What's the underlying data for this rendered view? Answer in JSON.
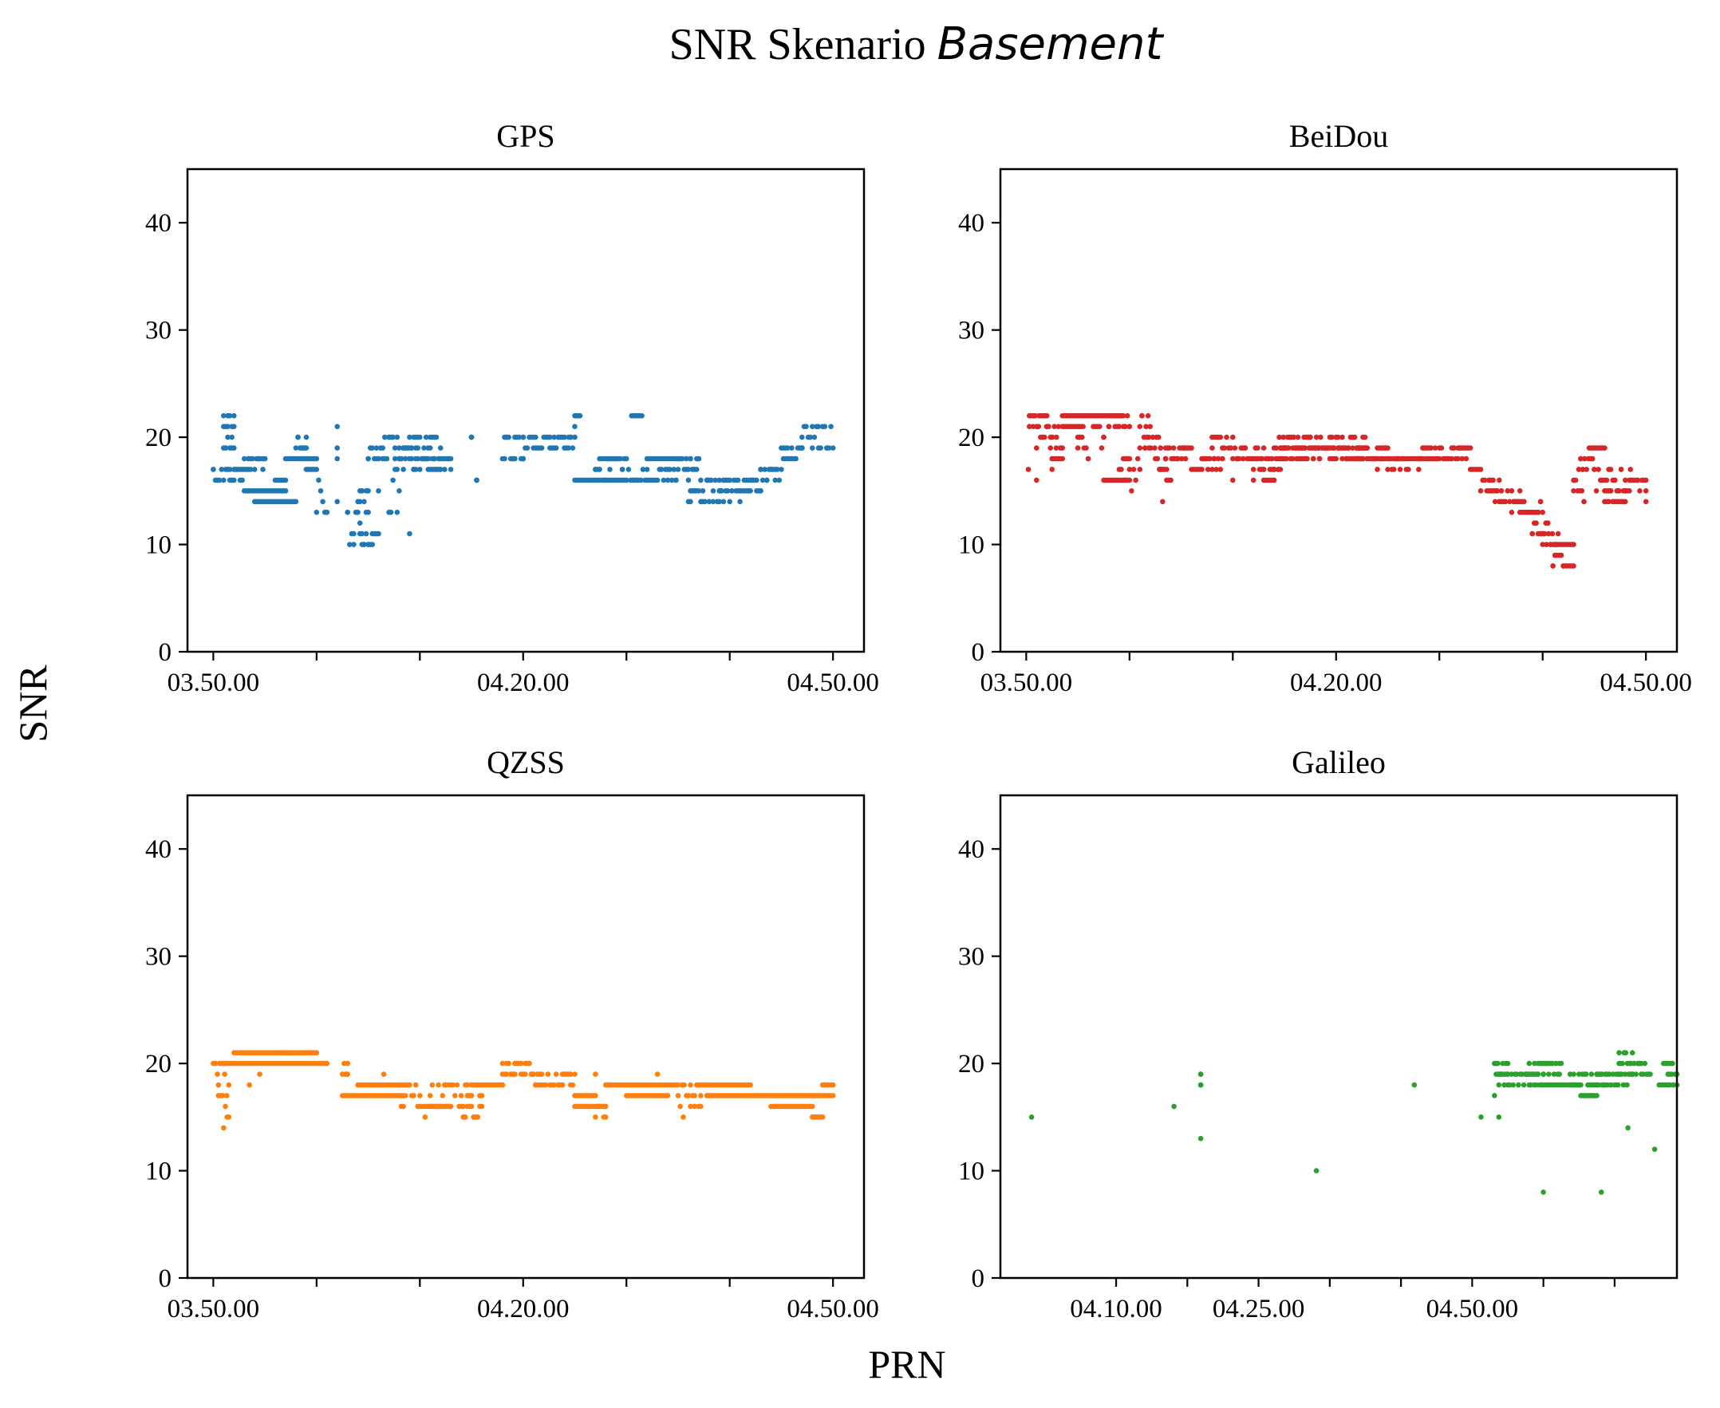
{
  "figure": {
    "title_prefix": "SNR Skenario",
    "title_italic": "Basement",
    "ylabel": "SNR",
    "xlabel": "PRN"
  },
  "chart_data": [
    {
      "type": "scatter",
      "title": "GPS",
      "color": "#1f77b4",
      "xlim": [
        -2.5,
        63
      ],
      "ylim": [
        0,
        45
      ],
      "yticks": [
        0,
        10,
        20,
        30,
        40
      ],
      "xticks": [
        0,
        10,
        20,
        30,
        40,
        50,
        60
      ],
      "xticklabels": [
        "03.50.00",
        "",
        "",
        "04.20.00",
        "",
        "",
        "04.50.00"
      ],
      "segments": [
        [
          0,
          3,
          16,
          17
        ],
        [
          1,
          2,
          21,
          22
        ],
        [
          1,
          2,
          19,
          20
        ],
        [
          3,
          5,
          17,
          18
        ],
        [
          3,
          7,
          15,
          15
        ],
        [
          4,
          8,
          14,
          14
        ],
        [
          6,
          7,
          16,
          16
        ],
        [
          7,
          10,
          18,
          18
        ],
        [
          8,
          9,
          19,
          20
        ],
        [
          9,
          10,
          17,
          17
        ],
        [
          10,
          11,
          13,
          16
        ],
        [
          12,
          12,
          14,
          21
        ],
        [
          13,
          15,
          10,
          13
        ],
        [
          14,
          15,
          14,
          15
        ],
        [
          15,
          16,
          10,
          11
        ],
        [
          15,
          22,
          18,
          20
        ],
        [
          17,
          18,
          11,
          17
        ],
        [
          18,
          22,
          17,
          19
        ],
        [
          22,
          23,
          17,
          18
        ],
        [
          25,
          25,
          20,
          20
        ],
        [
          25.5,
          25.5,
          16,
          16
        ],
        [
          28,
          30,
          18,
          20
        ],
        [
          30,
          35,
          19,
          20
        ],
        [
          35,
          35.5,
          21,
          22
        ],
        [
          35,
          40,
          16,
          16
        ],
        [
          37,
          40,
          17,
          18
        ],
        [
          40,
          45,
          16,
          17
        ],
        [
          40.5,
          41.5,
          22,
          22
        ],
        [
          42,
          45,
          18,
          18
        ],
        [
          45,
          47,
          17,
          18
        ],
        [
          46,
          50,
          14,
          16
        ],
        [
          49,
          53,
          15,
          16
        ],
        [
          53,
          55,
          16,
          17
        ],
        [
          55,
          57,
          18,
          19
        ],
        [
          57,
          60,
          19,
          21
        ]
      ],
      "scatter_points": [
        [
          2,
          16
        ],
        [
          9,
          18
        ],
        [
          11,
          13
        ],
        [
          12,
          21
        ],
        [
          16,
          15
        ],
        [
          19,
          11
        ],
        [
          23,
          17
        ],
        [
          25,
          20
        ],
        [
          25.5,
          16
        ],
        [
          29,
          18
        ],
        [
          30,
          18
        ],
        [
          38,
          16
        ],
        [
          44,
          17
        ],
        [
          48,
          14
        ],
        [
          51,
          14
        ]
      ]
    },
    {
      "type": "scatter",
      "title": "BeiDou",
      "color": "#d62728",
      "xlim": [
        -2.5,
        63
      ],
      "ylim": [
        0,
        45
      ],
      "yticks": [
        0,
        10,
        20,
        30,
        40
      ],
      "xticks": [
        0,
        10,
        20,
        30,
        40,
        50,
        60
      ],
      "xticklabels": [
        "03.50.00",
        "",
        "",
        "04.20.00",
        "",
        "",
        "04.50.00"
      ],
      "segments": [
        [
          0.3,
          2,
          21,
          22
        ],
        [
          1,
          3.5,
          19,
          21
        ],
        [
          2.5,
          3.5,
          18,
          19
        ],
        [
          3.5,
          5.5,
          21,
          21
        ],
        [
          3.5,
          9,
          22,
          22
        ],
        [
          5,
          6,
          18,
          21
        ],
        [
          6.5,
          7.5,
          19,
          21
        ],
        [
          7.5,
          10,
          16,
          16
        ],
        [
          8,
          10,
          21,
          22
        ],
        [
          9,
          10,
          17,
          18
        ],
        [
          10,
          11,
          15,
          18
        ],
        [
          11,
          12,
          19,
          22
        ],
        [
          11.5,
          13,
          19,
          20
        ],
        [
          12.5,
          13.5,
          17,
          18
        ],
        [
          13,
          14,
          16,
          17
        ],
        [
          13.5,
          16,
          18,
          19
        ],
        [
          16,
          19,
          17,
          18
        ],
        [
          18,
          20,
          19,
          20
        ],
        [
          20,
          23,
          18,
          19
        ],
        [
          22,
          25,
          17,
          18
        ],
        [
          23,
          24,
          16,
          17
        ],
        [
          24,
          27,
          18,
          19
        ],
        [
          24.5,
          28.5,
          19,
          20
        ],
        [
          27,
          33,
          18,
          19
        ],
        [
          29,
          33,
          19,
          20
        ],
        [
          31,
          35,
          18,
          19
        ],
        [
          33.5,
          36,
          18,
          18
        ],
        [
          35,
          37,
          17,
          18
        ],
        [
          36,
          40,
          18,
          18
        ],
        [
          38,
          43,
          18,
          19
        ],
        [
          43,
          44,
          17,
          17
        ],
        [
          44,
          46,
          15,
          16
        ],
        [
          45,
          48,
          14,
          15
        ],
        [
          47,
          50,
          13,
          14
        ],
        [
          49,
          50.5,
          11,
          12
        ],
        [
          50,
          51.5,
          10,
          11
        ],
        [
          51,
          52,
          8,
          9
        ],
        [
          51,
          53,
          10,
          10
        ],
        [
          52,
          53,
          8,
          8
        ],
        [
          53,
          54,
          14,
          16
        ],
        [
          53.5,
          55,
          17,
          18
        ],
        [
          54.5,
          56,
          19,
          19
        ],
        [
          55,
          58,
          15,
          17
        ],
        [
          56,
          58,
          14,
          15
        ],
        [
          58,
          60,
          15,
          16
        ]
      ],
      "scatter_points": [
        [
          0.2,
          17
        ],
        [
          1,
          16
        ],
        [
          2.5,
          17
        ],
        [
          8,
          21
        ],
        [
          9.5,
          16
        ],
        [
          13.2,
          14
        ],
        [
          20,
          16
        ],
        [
          22,
          16
        ],
        [
          34,
          17
        ],
        [
          38,
          17
        ],
        [
          58.5,
          17
        ],
        [
          60,
          14
        ]
      ]
    },
    {
      "type": "scatter",
      "title": "QZSS",
      "color": "#ff7f0e",
      "xlim": [
        -2.5,
        63
      ],
      "ylim": [
        0,
        45
      ],
      "yticks": [
        0,
        10,
        20,
        30,
        40
      ],
      "xticks": [
        0,
        10,
        20,
        30,
        40,
        50,
        60
      ],
      "xticklabels": [
        "03.50.00",
        "",
        "",
        "04.20.00",
        "",
        "",
        "04.50.00"
      ],
      "segments": [
        [
          0,
          1,
          19,
          20
        ],
        [
          0.5,
          1.5,
          17,
          19
        ],
        [
          1,
          1.5,
          14,
          16
        ],
        [
          1,
          11,
          20,
          20
        ],
        [
          2,
          7,
          21,
          21
        ],
        [
          6.5,
          10,
          21,
          21
        ],
        [
          12.5,
          16,
          17,
          17
        ],
        [
          12.5,
          13,
          19,
          20
        ],
        [
          14,
          19,
          18,
          18
        ],
        [
          16,
          18,
          17,
          17
        ],
        [
          18,
          20,
          16,
          18
        ],
        [
          20,
          23,
          16,
          16
        ],
        [
          21,
          25,
          16,
          18
        ],
        [
          24,
          26,
          15,
          17
        ],
        [
          25,
          28,
          18,
          18
        ],
        [
          28,
          31,
          19,
          20
        ],
        [
          31,
          35,
          18,
          19
        ],
        [
          35,
          37,
          17,
          17
        ],
        [
          35,
          38,
          16,
          16
        ],
        [
          37,
          38,
          15,
          16
        ],
        [
          38,
          45,
          18,
          18
        ],
        [
          40,
          44,
          17,
          17
        ],
        [
          45,
          48,
          16,
          18
        ],
        [
          47,
          52,
          18,
          18
        ],
        [
          48,
          60,
          17,
          17
        ],
        [
          54,
          58,
          16,
          16
        ],
        [
          58,
          59,
          15,
          15
        ],
        [
          59,
          60,
          18,
          18
        ]
      ],
      "scatter_points": [
        [
          3.5,
          18
        ],
        [
          4.5,
          19
        ],
        [
          13,
          20
        ],
        [
          16.5,
          19
        ],
        [
          20.5,
          15
        ],
        [
          22.5,
          18
        ],
        [
          37,
          19
        ],
        [
          43,
          19
        ],
        [
          45.5,
          15
        ],
        [
          57,
          17
        ]
      ]
    },
    {
      "type": "scatter",
      "title": "Galileo",
      "color": "#2ca02c",
      "xlim": [
        -5,
        71
      ],
      "ylim": [
        0,
        45
      ],
      "yticks": [
        0,
        10,
        20,
        30,
        40
      ],
      "xticks": [
        8,
        16,
        24,
        32,
        40,
        48,
        56,
        64
      ],
      "xticklabels": [
        "04.10.00",
        "",
        "04.25.00",
        "",
        "",
        "04.50.00",
        "",
        ""
      ],
      "segments": [
        [
          17.5,
          17.5,
          16,
          19
        ],
        [
          50.5,
          52,
          19,
          20
        ],
        [
          51,
          56,
          18,
          19
        ],
        [
          54,
          58,
          19,
          20
        ],
        [
          56,
          60,
          18,
          18
        ],
        [
          59,
          63,
          18,
          19
        ],
        [
          60,
          62,
          17,
          18
        ],
        [
          62,
          66,
          18,
          19
        ],
        [
          64.5,
          66,
          20,
          21
        ],
        [
          66,
          68,
          19,
          20
        ],
        [
          69,
          70,
          18,
          18
        ],
        [
          70,
          71,
          18,
          19
        ],
        [
          69.5,
          70.5,
          20,
          20
        ]
      ],
      "scatter_points": [
        [
          -1.5,
          15
        ],
        [
          14.5,
          16
        ],
        [
          17.5,
          13
        ],
        [
          17.5,
          18
        ],
        [
          30.5,
          10
        ],
        [
          41.5,
          18
        ],
        [
          49,
          15
        ],
        [
          51,
          15
        ],
        [
          50.5,
          17
        ],
        [
          56,
          8
        ],
        [
          62.5,
          8
        ],
        [
          65.5,
          14
        ],
        [
          68.5,
          12
        ],
        [
          71,
          18
        ]
      ]
    }
  ]
}
